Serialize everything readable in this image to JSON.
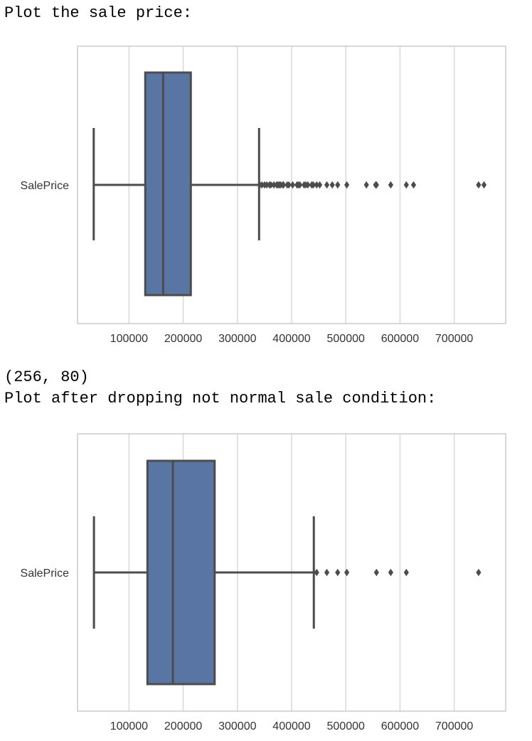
{
  "output": {
    "line1": "Plot the sale price:",
    "line2": "(256, 80)",
    "line3": "Plot after dropping not normal sale condition:"
  },
  "colors": {
    "box_fill": "#5875a4",
    "line": "#4c4c4c",
    "grid": "#d9d9d9",
    "frame": "#cccccc"
  },
  "chart_data": [
    {
      "type": "box",
      "orientation": "horizontal",
      "category": "SalePrice",
      "xlim": [
        5000,
        795000
      ],
      "xticks": [
        100000,
        200000,
        300000,
        400000,
        500000,
        600000,
        700000
      ],
      "grid": "vertical",
      "stats": {
        "whisker_low": 34900,
        "q1": 129975,
        "median": 163000,
        "q3": 214000,
        "whisker_high": 340000
      },
      "outliers": [
        341000,
        345000,
        350000,
        354000,
        359100,
        361919,
        367294,
        372402,
        375000,
        377426,
        380000,
        383970,
        385000,
        392000,
        395000,
        402000,
        410000,
        412500,
        415298,
        423000,
        426000,
        430000,
        437154,
        440000,
        446261,
        451950,
        465000,
        475000,
        485000,
        501837,
        538000,
        555000,
        556581,
        582933,
        611657,
        625000,
        745000,
        755000
      ]
    },
    {
      "type": "box",
      "orientation": "horizontal",
      "category": "SalePrice",
      "xlim": [
        5000,
        795000
      ],
      "xticks": [
        100000,
        200000,
        300000,
        400000,
        500000,
        600000,
        700000
      ],
      "grid": "vertical",
      "stats": {
        "whisker_low": 35311,
        "q1": 134000,
        "median": 181000,
        "q3": 258000,
        "whisker_high": 441000
      },
      "outliers": [
        446261,
        465000,
        485000,
        501837,
        556581,
        582933,
        611657,
        745000
      ]
    }
  ]
}
